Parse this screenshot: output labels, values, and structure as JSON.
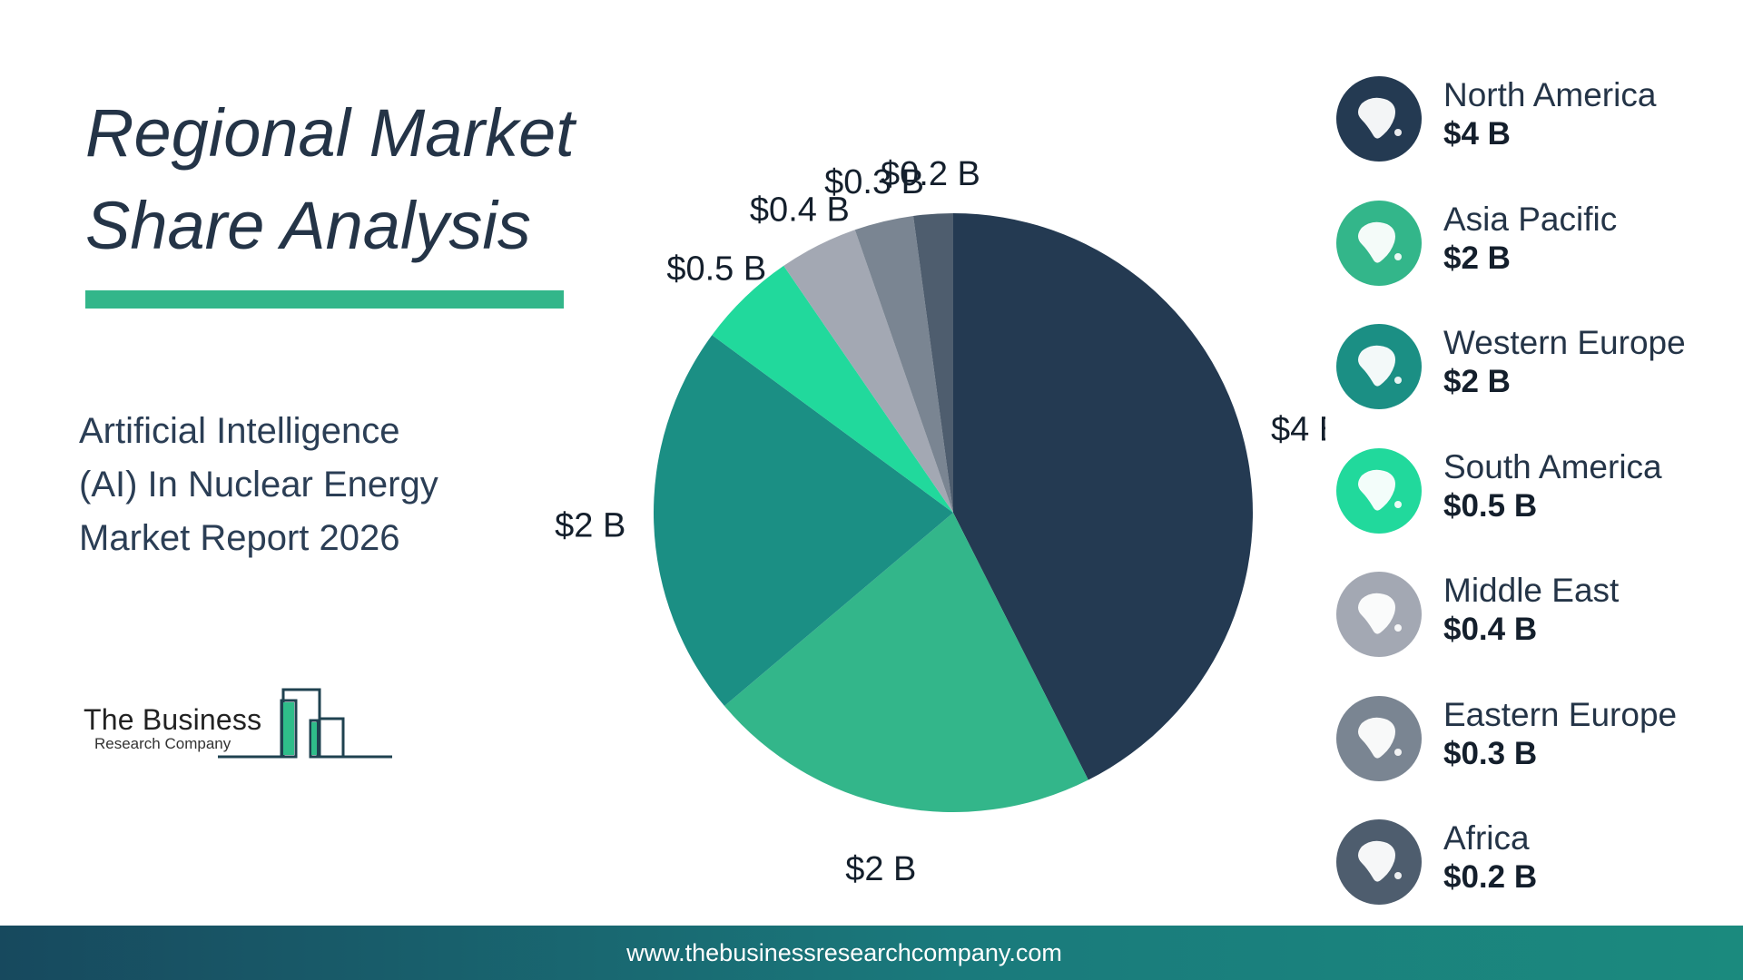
{
  "title": {
    "line1": "Regional Market",
    "line2": "Share Analysis"
  },
  "subtitle": "Artificial Intelligence (AI) In Nuclear Energy Market Report 2026",
  "logo": {
    "line1": "The Business",
    "line2": "Research Company"
  },
  "footer": {
    "url": "www.thebusinessresearchcompany.com"
  },
  "colors": {
    "accent": "#33b68a",
    "title": "#243447"
  },
  "chart_data": {
    "type": "pie",
    "unit": "$ B",
    "slices": [
      {
        "label": "North America",
        "value": 4,
        "display": "$4 B",
        "color": "#243a52",
        "icon": "north-america-map-icon"
      },
      {
        "label": "Asia Pacific",
        "value": 2,
        "display": "$2 B",
        "color": "#33b68a",
        "icon": "asia-pacific-map-icon"
      },
      {
        "label": "Western Europe",
        "value": 2,
        "display": "$2 B",
        "color": "#1b8f84",
        "icon": "western-europe-map-icon"
      },
      {
        "label": "South America",
        "value": 0.5,
        "display": "$0.5 B",
        "color": "#21d99c",
        "icon": "south-america-map-icon"
      },
      {
        "label": "Middle East",
        "value": 0.4,
        "display": "$0.4 B",
        "color": "#a3a8b3",
        "icon": "middle-east-map-icon"
      },
      {
        "label": "Eastern Europe",
        "value": 0.3,
        "display": "$0.3 B",
        "color": "#7a8592",
        "icon": "eastern-europe-map-icon"
      },
      {
        "label": "Africa",
        "value": 0.2,
        "display": "$0.2 B",
        "color": "#4e5d6e",
        "icon": "africa-map-icon"
      }
    ],
    "legend_position": "right"
  }
}
